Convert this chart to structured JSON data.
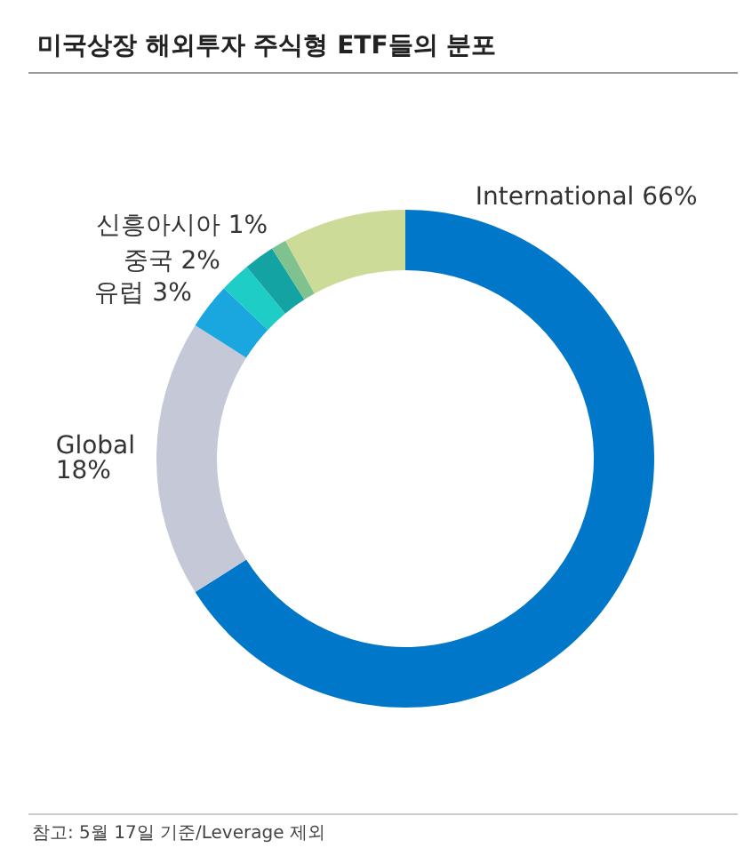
{
  "chart_data": {
    "type": "donut",
    "title": "미국상장 해외투자 주식형 ETF들의 분포",
    "categories": [
      "International",
      "Global",
      "유럽",
      "중국",
      null,
      "신흥아시아",
      null
    ],
    "values": [
      66,
      18,
      3,
      2,
      2,
      1,
      8
    ],
    "value_labels": [
      "66%",
      "18%",
      "3%",
      "2%",
      null,
      "1%",
      null
    ],
    "colors": [
      "#0077c8",
      "#c5c8d6",
      "#1aa7e0",
      "#1fcdc7",
      "#14a3a3",
      "#7fc28f",
      "#cddb98"
    ],
    "annotations": [
      "참고: 5월 17일 기준/Leverage 제외"
    ],
    "legend": false
  }
}
